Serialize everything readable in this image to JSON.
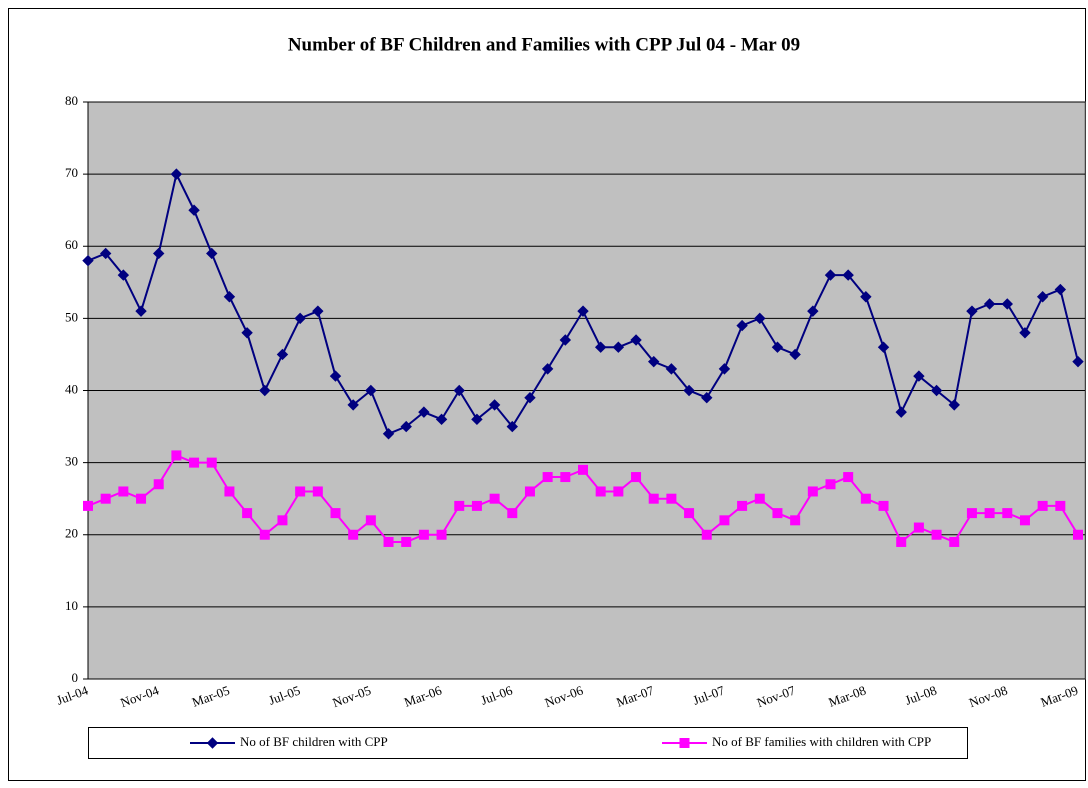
{
  "chart_data": {
    "type": "line",
    "title": "Number of BF Children and Families with CPP Jul 04 - Mar 09",
    "categories": [
      "Jul-04",
      null,
      null,
      null,
      "Nov-04",
      null,
      null,
      null,
      "Mar-05",
      null,
      null,
      null,
      "Jul-05",
      null,
      null,
      null,
      "Nov-05",
      null,
      null,
      null,
      "Mar-06",
      null,
      null,
      null,
      "Jul-06",
      null,
      null,
      null,
      "Nov-06",
      null,
      null,
      null,
      "Mar-07",
      null,
      null,
      null,
      "Jul-07",
      null,
      null,
      null,
      "Nov-07",
      null,
      null,
      null,
      "Mar-08",
      null,
      null,
      null,
      "Jul-08",
      null,
      null,
      null,
      "Nov-08",
      null,
      null,
      null,
      "Mar-09"
    ],
    "series": [
      {
        "name": "No of BF children with CPP",
        "color": "#000080",
        "marker": "diamond",
        "values": [
          58,
          59,
          56,
          51,
          59,
          70,
          65,
          59,
          53,
          48,
          40,
          45,
          50,
          51,
          42,
          38,
          40,
          34,
          35,
          37,
          36,
          40,
          36,
          38,
          35,
          39,
          43,
          47,
          51,
          46,
          46,
          47,
          44,
          43,
          40,
          39,
          43,
          49,
          50,
          46,
          45,
          51,
          56,
          56,
          53,
          46,
          37,
          42,
          40,
          38,
          51,
          52,
          52,
          48,
          53,
          54,
          44
        ]
      },
      {
        "name": "No of BF families with children with CPP",
        "color": "#ff00ff",
        "marker": "square",
        "values": [
          24,
          25,
          26,
          25,
          27,
          31,
          30,
          30,
          26,
          23,
          20,
          22,
          26,
          26,
          23,
          20,
          22,
          19,
          19,
          20,
          20,
          24,
          24,
          25,
          23,
          26,
          28,
          28,
          29,
          26,
          26,
          28,
          25,
          25,
          23,
          20,
          22,
          24,
          25,
          23,
          22,
          26,
          27,
          28,
          25,
          24,
          19,
          21,
          20,
          19,
          23,
          23,
          23,
          22,
          24,
          24,
          20
        ]
      }
    ],
    "ylim": [
      0,
      80
    ],
    "yticks": [
      0,
      10,
      20,
      30,
      40,
      50,
      60,
      70,
      80
    ],
    "grid": true,
    "legend": "bottom"
  }
}
